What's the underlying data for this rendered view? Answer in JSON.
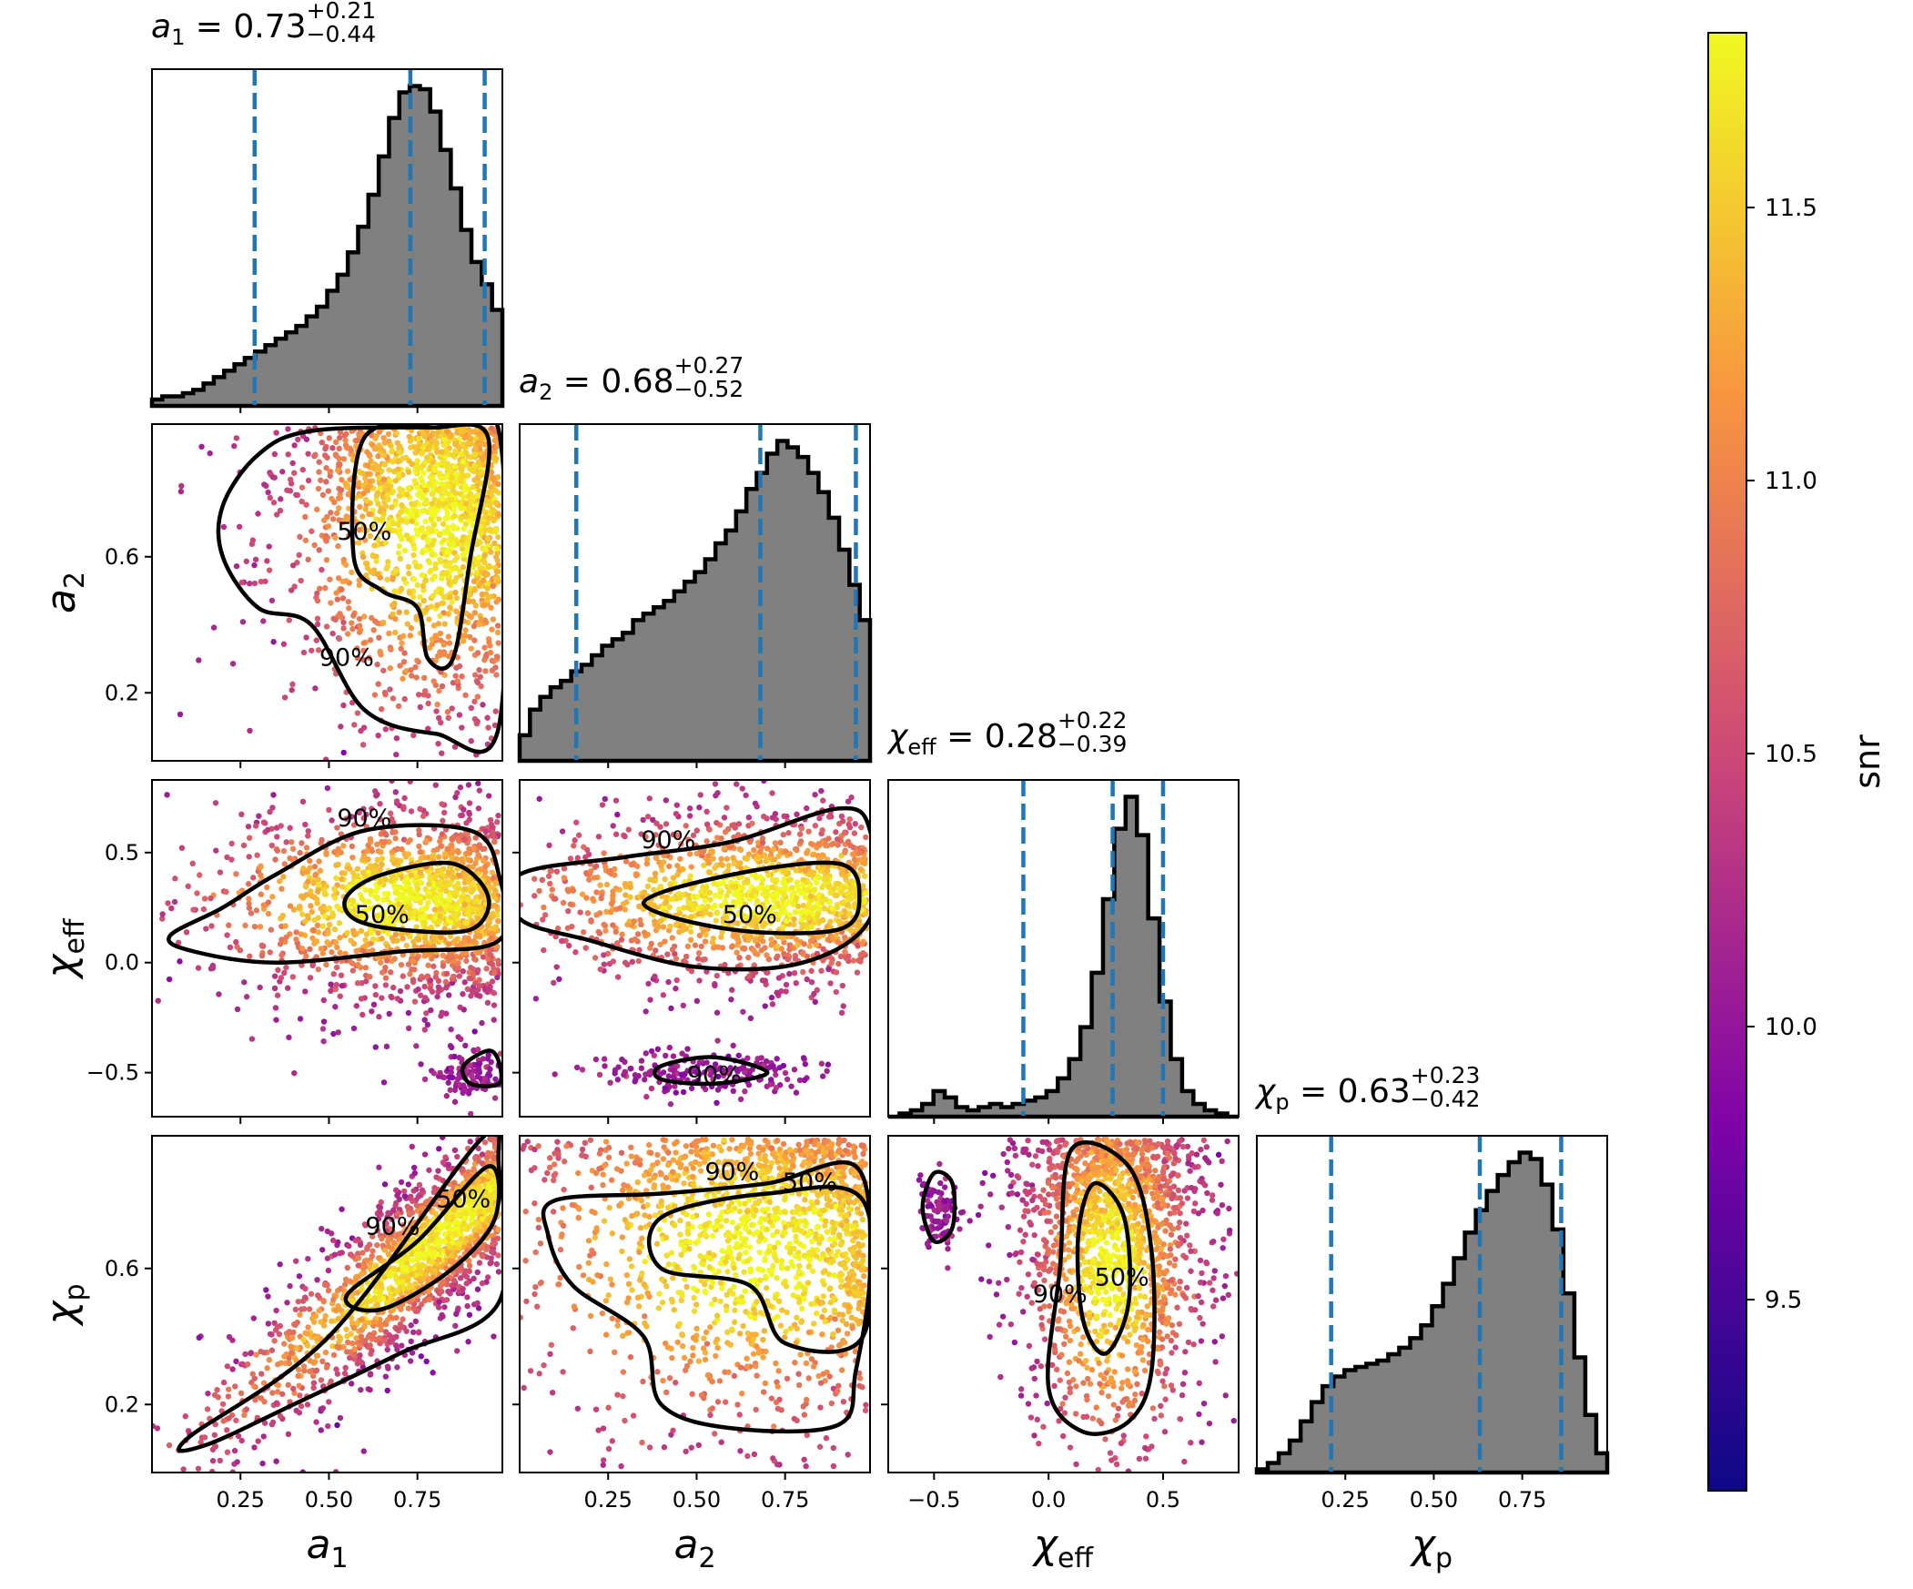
{
  "figure": {
    "kind": "corner-plot",
    "colormap": "plasma",
    "scatter_point_color_range": [
      "#0d0887",
      "#f0f921"
    ]
  },
  "colorbar": {
    "label": "snr",
    "range": [
      9.15,
      11.82
    ],
    "ticks": [
      "9.5",
      "10.0",
      "10.5",
      "11.0",
      "11.5"
    ]
  },
  "chart_data": {
    "type": "scatter",
    "title": "",
    "parameters": [
      {
        "name": "a1",
        "label_symbol": "a",
        "label_sub": "1",
        "median": "0.73",
        "plus": "+0.21",
        "minus": "−0.44",
        "range": [
          0.0,
          0.99
        ],
        "ticks": [
          "0.25",
          "0.50",
          "0.75"
        ]
      },
      {
        "name": "a2",
        "label_symbol": "a",
        "label_sub": "2",
        "median": "0.68",
        "plus": "+0.27",
        "minus": "−0.52",
        "range": [
          0.0,
          0.99
        ],
        "ticks": [
          "0.25",
          "0.50",
          "0.75"
        ]
      },
      {
        "name": "chi_eff",
        "label_symbol": "χ",
        "label_sub": "eff",
        "median": "0.28",
        "plus": "+0.22",
        "minus": "−0.39",
        "range": [
          -0.7,
          0.83
        ],
        "ticks": [
          "−0.5",
          "0.0",
          "0.5"
        ]
      },
      {
        "name": "chi_p",
        "label_symbol": "χ",
        "label_sub": "p",
        "median": "0.63",
        "plus": "+0.23",
        "minus": "−0.42",
        "range": [
          0.0,
          0.99
        ],
        "ticks": [
          "0.25",
          "0.50",
          "0.75"
        ]
      }
    ],
    "row_tick_labels": {
      "a2": [
        "0.2",
        "0.6"
      ],
      "chi_eff": [
        "−0.5",
        "0.0",
        "0.5"
      ],
      "chi_p": [
        "0.2",
        "0.6"
      ]
    },
    "histograms": [
      {
        "param": "a1",
        "quantile_lines": [
          0.29,
          0.73,
          0.94
        ],
        "density": [
          0.02,
          0.03,
          0.03,
          0.04,
          0.05,
          0.07,
          0.09,
          0.11,
          0.13,
          0.15,
          0.17,
          0.19,
          0.21,
          0.23,
          0.25,
          0.28,
          0.31,
          0.36,
          0.41,
          0.48,
          0.56,
          0.66,
          0.78,
          0.9,
          0.98,
          1.0,
          0.99,
          0.92,
          0.8,
          0.68,
          0.55,
          0.45,
          0.38,
          0.3
        ]
      },
      {
        "param": "a2",
        "quantile_lines": [
          0.16,
          0.68,
          0.95
        ],
        "density": [
          0.08,
          0.16,
          0.2,
          0.23,
          0.25,
          0.28,
          0.3,
          0.33,
          0.36,
          0.38,
          0.4,
          0.44,
          0.46,
          0.48,
          0.5,
          0.53,
          0.56,
          0.59,
          0.63,
          0.68,
          0.72,
          0.78,
          0.85,
          0.9,
          0.96,
          1.0,
          0.98,
          0.95,
          0.9,
          0.84,
          0.76,
          0.66,
          0.55,
          0.44
        ]
      },
      {
        "param": "chi_eff",
        "quantile_lines": [
          -0.11,
          0.28,
          0.5
        ],
        "density": [
          0.0,
          0.01,
          0.02,
          0.04,
          0.08,
          0.06,
          0.03,
          0.02,
          0.03,
          0.04,
          0.03,
          0.04,
          0.05,
          0.06,
          0.08,
          0.12,
          0.18,
          0.28,
          0.45,
          0.68,
          0.9,
          1.0,
          0.88,
          0.62,
          0.36,
          0.18,
          0.08,
          0.04,
          0.02,
          0.01,
          0.0
        ]
      },
      {
        "param": "chi_p",
        "quantile_lines": [
          0.21,
          0.63,
          0.86
        ],
        "density": [
          0.01,
          0.03,
          0.06,
          0.1,
          0.16,
          0.22,
          0.27,
          0.3,
          0.32,
          0.33,
          0.34,
          0.35,
          0.37,
          0.39,
          0.42,
          0.46,
          0.52,
          0.59,
          0.67,
          0.75,
          0.82,
          0.88,
          0.93,
          0.97,
          1.0,
          0.98,
          0.9,
          0.76,
          0.56,
          0.36,
          0.18,
          0.06
        ]
      }
    ],
    "contour_levels": [
      "50%",
      "90%"
    ],
    "scatter_pairs": [
      {
        "x": "a1",
        "y": "a2"
      },
      {
        "x": "a1",
        "y": "chi_eff"
      },
      {
        "x": "a2",
        "y": "chi_eff"
      },
      {
        "x": "a1",
        "y": "chi_p"
      },
      {
        "x": "a2",
        "y": "chi_p"
      },
      {
        "x": "chi_eff",
        "y": "chi_p"
      }
    ]
  }
}
